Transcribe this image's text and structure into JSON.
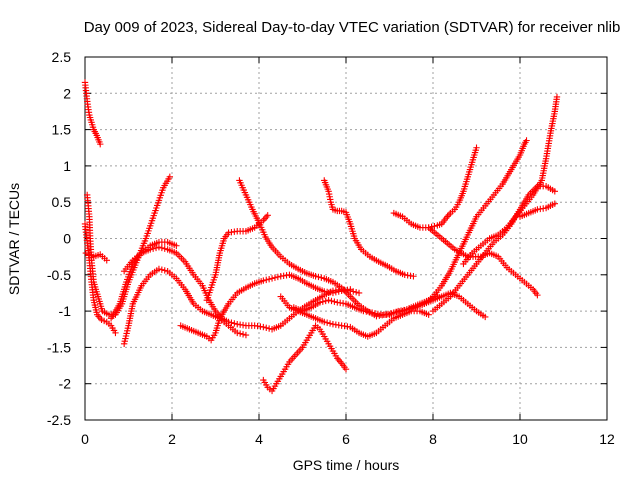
{
  "chart_data": {
    "type": "scatter",
    "title": "Day 009 of 2023, Sidereal Day-to-day VTEC variation (SDTVAR) for receiver nlib",
    "xlabel": "GPS time / hours",
    "ylabel": "SDTVAR / TECUs",
    "xlim": [
      0,
      12
    ],
    "ylim": [
      -2.5,
      2.5
    ],
    "xticks": [
      "0",
      "2",
      "4",
      "6",
      "8",
      "10",
      "12"
    ],
    "yticks": [
      "2.5",
      "2",
      "1.5",
      "1",
      "0.5",
      "0",
      "-0.5",
      "-1",
      "-1.5",
      "-2",
      "-2.5"
    ],
    "grid": true,
    "marker": "plus",
    "color": "#ff0000",
    "series": [
      {
        "points": [
          [
            0.0,
            2.15
          ],
          [
            0.03,
            2.0
          ],
          [
            0.06,
            1.85
          ],
          [
            0.1,
            1.7
          ],
          [
            0.15,
            1.6
          ],
          [
            0.2,
            1.5
          ],
          [
            0.27,
            1.42
          ],
          [
            0.35,
            1.3
          ]
        ]
      },
      {
        "points": [
          [
            0.0,
            0.2
          ],
          [
            0.03,
            0.05
          ],
          [
            0.06,
            -0.1
          ],
          [
            0.1,
            -0.3
          ],
          [
            0.15,
            -0.6
          ],
          [
            0.2,
            -0.85
          ],
          [
            0.28,
            -1.05
          ],
          [
            0.38,
            -1.12
          ],
          [
            0.5,
            -1.15
          ],
          [
            0.6,
            -1.2
          ],
          [
            0.7,
            -1.3
          ]
        ]
      },
      {
        "points": [
          [
            0.05,
            0.6
          ],
          [
            0.1,
            0.3
          ],
          [
            0.12,
            0.0
          ],
          [
            0.15,
            -0.3
          ],
          [
            0.2,
            -0.6
          ],
          [
            0.3,
            -0.8
          ],
          [
            0.4,
            -1.0
          ],
          [
            0.55,
            -1.05
          ],
          [
            0.7,
            -1.05
          ],
          [
            0.85,
            -0.9
          ],
          [
            1.0,
            -0.6
          ],
          [
            1.2,
            -0.3
          ],
          [
            1.4,
            0.0
          ],
          [
            1.6,
            0.35
          ],
          [
            1.8,
            0.7
          ],
          [
            1.95,
            0.85
          ]
        ]
      },
      {
        "points": [
          [
            0.02,
            -0.2
          ],
          [
            0.1,
            -0.22
          ],
          [
            0.2,
            -0.25
          ],
          [
            0.35,
            -0.22
          ],
          [
            0.5,
            -0.3
          ]
        ]
      },
      {
        "points": [
          [
            0.6,
            -1.1
          ],
          [
            0.8,
            -0.9
          ],
          [
            0.95,
            -0.6
          ],
          [
            1.1,
            -0.35
          ],
          [
            1.3,
            -0.2
          ],
          [
            1.5,
            -0.1
          ],
          [
            1.7,
            -0.05
          ],
          [
            1.9,
            -0.05
          ],
          [
            2.1,
            -0.1
          ]
        ]
      },
      {
        "points": [
          [
            0.9,
            -1.45
          ],
          [
            1.0,
            -1.2
          ],
          [
            1.1,
            -0.9
          ],
          [
            1.3,
            -0.65
          ],
          [
            1.5,
            -0.5
          ],
          [
            1.7,
            -0.42
          ],
          [
            1.9,
            -0.45
          ],
          [
            2.1,
            -0.55
          ],
          [
            2.3,
            -0.7
          ],
          [
            2.5,
            -0.9
          ],
          [
            2.7,
            -1.0
          ],
          [
            2.9,
            -1.05
          ],
          [
            3.1,
            -1.1
          ],
          [
            3.3,
            -1.2
          ],
          [
            3.5,
            -1.3
          ],
          [
            3.7,
            -1.33
          ]
        ]
      },
      {
        "points": [
          [
            0.9,
            -0.45
          ],
          [
            1.1,
            -0.3
          ],
          [
            1.3,
            -0.2
          ],
          [
            1.5,
            -0.15
          ],
          [
            1.7,
            -0.12
          ],
          [
            1.9,
            -0.15
          ],
          [
            2.1,
            -0.2
          ],
          [
            2.3,
            -0.32
          ],
          [
            2.5,
            -0.5
          ],
          [
            2.7,
            -0.65
          ],
          [
            2.85,
            -0.85
          ],
          [
            3.0,
            -1.0
          ],
          [
            3.15,
            -1.1
          ],
          [
            3.3,
            -1.15
          ],
          [
            3.5,
            -1.18
          ],
          [
            3.7,
            -1.2
          ],
          [
            3.9,
            -1.2
          ],
          [
            4.1,
            -1.22
          ],
          [
            4.3,
            -1.25
          ],
          [
            4.5,
            -1.2
          ],
          [
            4.7,
            -1.1
          ],
          [
            4.9,
            -1.0
          ],
          [
            5.1,
            -0.92
          ],
          [
            5.3,
            -0.85
          ],
          [
            5.5,
            -0.78
          ],
          [
            5.7,
            -0.72
          ],
          [
            5.9,
            -0.7
          ],
          [
            6.1,
            -0.72
          ],
          [
            6.3,
            -0.75
          ]
        ]
      },
      {
        "points": [
          [
            2.2,
            -1.2
          ],
          [
            2.4,
            -1.25
          ],
          [
            2.6,
            -1.3
          ],
          [
            2.8,
            -1.35
          ],
          [
            2.9,
            -1.4
          ],
          [
            3.0,
            -1.3
          ],
          [
            3.1,
            -1.1
          ],
          [
            3.3,
            -0.9
          ],
          [
            3.5,
            -0.75
          ],
          [
            3.7,
            -0.68
          ],
          [
            3.9,
            -0.62
          ],
          [
            4.1,
            -0.58
          ],
          [
            4.3,
            -0.55
          ],
          [
            4.5,
            -0.52
          ],
          [
            4.7,
            -0.5
          ],
          [
            4.9,
            -0.55
          ],
          [
            5.1,
            -0.62
          ],
          [
            5.3,
            -0.68
          ],
          [
            5.5,
            -0.73
          ],
          [
            5.7,
            -0.75
          ],
          [
            5.9,
            -0.72
          ],
          [
            6.1,
            -0.7
          ]
        ]
      },
      {
        "points": [
          [
            2.8,
            -0.85
          ],
          [
            3.0,
            -0.5
          ],
          [
            3.1,
            -0.2
          ],
          [
            3.2,
            0.0
          ],
          [
            3.3,
            0.08
          ],
          [
            3.5,
            0.1
          ],
          [
            3.7,
            0.1
          ],
          [
            3.9,
            0.15
          ],
          [
            4.1,
            0.25
          ],
          [
            4.2,
            0.32
          ]
        ]
      },
      {
        "points": [
          [
            3.55,
            0.8
          ],
          [
            3.7,
            0.6
          ],
          [
            3.85,
            0.4
          ],
          [
            4.0,
            0.22
          ],
          [
            4.15,
            0.02
          ],
          [
            4.3,
            -0.12
          ],
          [
            4.5,
            -0.25
          ],
          [
            4.7,
            -0.35
          ],
          [
            4.9,
            -0.42
          ],
          [
            5.1,
            -0.48
          ],
          [
            5.3,
            -0.52
          ],
          [
            5.5,
            -0.55
          ],
          [
            5.7,
            -0.6
          ],
          [
            5.9,
            -0.68
          ],
          [
            6.1,
            -0.8
          ],
          [
            6.3,
            -0.92
          ],
          [
            6.5,
            -1.0
          ],
          [
            6.7,
            -1.07
          ],
          [
            6.9,
            -1.05
          ],
          [
            7.1,
            -1.02
          ],
          [
            7.3,
            -1.0
          ],
          [
            7.5,
            -0.95
          ],
          [
            7.7,
            -0.9
          ],
          [
            7.9,
            -0.85
          ],
          [
            8.1,
            -0.78
          ]
        ]
      },
      {
        "points": [
          [
            4.1,
            -1.95
          ],
          [
            4.2,
            -2.05
          ],
          [
            4.3,
            -2.1
          ],
          [
            4.4,
            -2.0
          ],
          [
            4.5,
            -1.9
          ],
          [
            4.6,
            -1.8
          ],
          [
            4.7,
            -1.7
          ],
          [
            4.85,
            -1.6
          ],
          [
            5.0,
            -1.5
          ],
          [
            5.1,
            -1.4
          ],
          [
            5.2,
            -1.3
          ],
          [
            5.3,
            -1.2
          ],
          [
            5.4,
            -1.25
          ],
          [
            5.5,
            -1.35
          ],
          [
            5.6,
            -1.45
          ],
          [
            5.7,
            -1.55
          ],
          [
            5.8,
            -1.65
          ],
          [
            5.9,
            -1.72
          ],
          [
            6.0,
            -1.8
          ]
        ]
      },
      {
        "points": [
          [
            4.5,
            -0.8
          ],
          [
            4.7,
            -0.95
          ],
          [
            4.9,
            -1.0
          ],
          [
            5.1,
            -1.05
          ],
          [
            5.3,
            -1.1
          ],
          [
            5.5,
            -1.15
          ],
          [
            5.7,
            -1.18
          ],
          [
            5.9,
            -1.2
          ],
          [
            6.1,
            -1.22
          ],
          [
            6.3,
            -1.3
          ],
          [
            6.5,
            -1.35
          ],
          [
            6.7,
            -1.3
          ],
          [
            6.9,
            -1.2
          ],
          [
            7.1,
            -1.1
          ],
          [
            7.3,
            -1.05
          ],
          [
            7.5,
            -1.0
          ],
          [
            7.7,
            -1.0
          ],
          [
            7.9,
            -1.05
          ]
        ]
      },
      {
        "points": [
          [
            5.5,
            0.8
          ],
          [
            5.6,
            0.65
          ],
          [
            5.65,
            0.5
          ],
          [
            5.7,
            0.4
          ],
          [
            5.8,
            0.38
          ],
          [
            5.9,
            0.38
          ],
          [
            6.0,
            0.36
          ],
          [
            6.1,
            0.2
          ],
          [
            6.2,
            0.0
          ],
          [
            6.35,
            -0.15
          ],
          [
            6.55,
            -0.25
          ],
          [
            6.75,
            -0.32
          ],
          [
            6.95,
            -0.38
          ],
          [
            7.15,
            -0.45
          ],
          [
            7.35,
            -0.5
          ],
          [
            7.55,
            -0.52
          ]
        ]
      },
      {
        "points": [
          [
            4.8,
            -0.95
          ],
          [
            5.0,
            -1.0
          ],
          [
            5.2,
            -0.95
          ],
          [
            5.4,
            -0.88
          ],
          [
            5.6,
            -0.85
          ],
          [
            5.8,
            -0.88
          ],
          [
            6.0,
            -0.9
          ],
          [
            6.2,
            -0.95
          ],
          [
            6.4,
            -1.0
          ],
          [
            6.6,
            -1.02
          ],
          [
            6.8,
            -1.05
          ],
          [
            7.0,
            -1.05
          ],
          [
            7.2,
            -1.0
          ],
          [
            7.4,
            -0.98
          ],
          [
            7.6,
            -0.95
          ],
          [
            7.8,
            -0.9
          ],
          [
            8.0,
            -0.85
          ],
          [
            8.2,
            -0.8
          ],
          [
            8.4,
            -0.75
          ],
          [
            8.6,
            -0.8
          ],
          [
            8.8,
            -0.9
          ],
          [
            9.0,
            -1.0
          ],
          [
            9.2,
            -1.08
          ]
        ]
      },
      {
        "points": [
          [
            7.1,
            0.35
          ],
          [
            7.3,
            0.3
          ],
          [
            7.5,
            0.2
          ],
          [
            7.7,
            0.15
          ],
          [
            7.9,
            0.15
          ],
          [
            8.1,
            0.18
          ],
          [
            8.2,
            0.2
          ],
          [
            8.3,
            0.28
          ],
          [
            8.4,
            0.35
          ],
          [
            8.5,
            0.4
          ],
          [
            8.6,
            0.5
          ],
          [
            8.7,
            0.65
          ],
          [
            8.8,
            0.85
          ],
          [
            8.9,
            1.05
          ],
          [
            9.0,
            1.25
          ]
        ]
      },
      {
        "points": [
          [
            8.0,
            -1.0
          ],
          [
            8.2,
            -0.9
          ],
          [
            8.4,
            -0.8
          ],
          [
            8.6,
            -0.65
          ],
          [
            8.8,
            -0.5
          ],
          [
            9.0,
            -0.35
          ],
          [
            9.2,
            -0.2
          ],
          [
            9.4,
            -0.05
          ],
          [
            9.6,
            0.05
          ],
          [
            9.8,
            0.2
          ],
          [
            10.0,
            0.4
          ],
          [
            10.2,
            0.6
          ],
          [
            10.4,
            0.72
          ],
          [
            10.6,
            0.72
          ],
          [
            10.8,
            0.65
          ]
        ]
      },
      {
        "points": [
          [
            7.8,
            -0.9
          ],
          [
            8.0,
            -0.8
          ],
          [
            8.2,
            -0.65
          ],
          [
            8.4,
            -0.45
          ],
          [
            8.6,
            -0.2
          ],
          [
            8.8,
            0.05
          ],
          [
            9.0,
            0.3
          ],
          [
            9.2,
            0.45
          ],
          [
            9.4,
            0.6
          ],
          [
            9.6,
            0.75
          ],
          [
            9.8,
            0.95
          ],
          [
            10.0,
            1.15
          ],
          [
            10.1,
            1.3
          ],
          [
            10.15,
            1.35
          ]
        ]
      },
      {
        "points": [
          [
            7.9,
            0.15
          ],
          [
            8.2,
            0.0
          ],
          [
            8.5,
            -0.15
          ],
          [
            8.8,
            -0.25
          ],
          [
            9.1,
            -0.25
          ],
          [
            9.3,
            -0.2
          ],
          [
            9.5,
            -0.25
          ],
          [
            9.7,
            -0.4
          ],
          [
            9.9,
            -0.5
          ],
          [
            10.1,
            -0.6
          ],
          [
            10.3,
            -0.7
          ],
          [
            10.4,
            -0.78
          ]
        ]
      },
      {
        "points": [
          [
            8.7,
            -0.35
          ],
          [
            8.9,
            -0.2
          ],
          [
            9.1,
            -0.1
          ],
          [
            9.3,
            0.0
          ],
          [
            9.5,
            0.05
          ],
          [
            9.7,
            0.15
          ],
          [
            9.9,
            0.3
          ],
          [
            10.1,
            0.45
          ],
          [
            10.3,
            0.6
          ],
          [
            10.5,
            0.8
          ],
          [
            10.6,
            1.1
          ],
          [
            10.7,
            1.45
          ],
          [
            10.8,
            1.75
          ],
          [
            10.85,
            1.95
          ]
        ]
      },
      {
        "points": [
          [
            10.0,
            0.3
          ],
          [
            10.2,
            0.35
          ],
          [
            10.4,
            0.4
          ],
          [
            10.6,
            0.42
          ],
          [
            10.8,
            0.48
          ]
        ]
      }
    ]
  }
}
